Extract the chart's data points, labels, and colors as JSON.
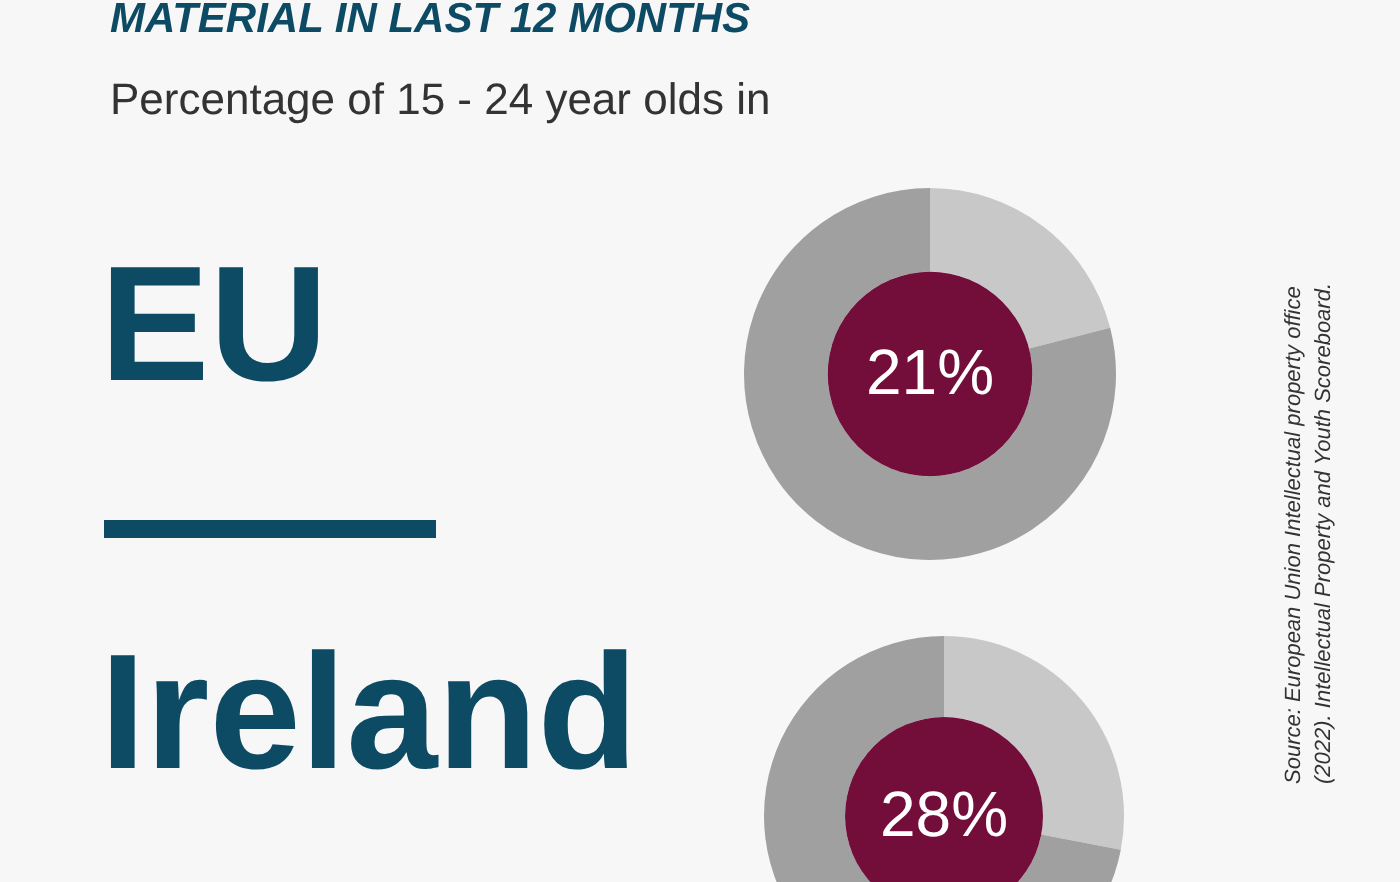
{
  "chart_data": [
    {
      "type": "donut",
      "title": "MATERIAL IN LAST 12 MONTHS",
      "subtitle": "Percentage of 15 - 24 year olds in",
      "annotations": [
        "EU"
      ],
      "categories": [
        null,
        null
      ],
      "values": [
        21,
        79
      ],
      "colors": [
        "#c8c8c8",
        "#a0a0a0"
      ],
      "value_labels": [
        "21%",
        null
      ],
      "legend": false
    },
    {
      "type": "donut",
      "annotations": [
        "Ireland",
        "Source: European Union Intellectual property office (2022). Intellectual Property and Youth Scoreboard."
      ],
      "categories": [
        null,
        null
      ],
      "values": [
        28,
        72
      ],
      "colors": [
        "#c8c8c8",
        "#a0a0a0"
      ],
      "value_labels": [
        "28%",
        null
      ],
      "legend": false
    }
  ]
}
